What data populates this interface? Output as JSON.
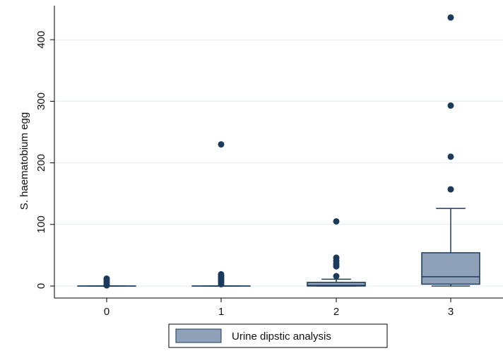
{
  "chart_data": {
    "type": "box",
    "ylabel": "S. haematobium egg",
    "xlabel": "",
    "categories": [
      "0",
      "1",
      "2",
      "3"
    ],
    "yticks": [
      0,
      100,
      200,
      300,
      400
    ],
    "ylim": [
      -20,
      452
    ],
    "grid": true,
    "legend_position": "bottom",
    "series": [
      {
        "name": "Urine dipstic analysis",
        "boxes": [
          {
            "category": "0",
            "q1": 0,
            "median": 0,
            "q3": 0,
            "whisker_low": 0,
            "whisker_high": 0,
            "outliers": [
              12,
              9,
              6,
              3,
              1
            ]
          },
          {
            "category": "1",
            "q1": 0,
            "median": 0,
            "q3": 0,
            "whisker_low": 0,
            "whisker_high": 0,
            "outliers": [
              230,
              19,
              16,
              14,
              12,
              9,
              6,
              3
            ]
          },
          {
            "category": "2",
            "q1": 0,
            "median": 1,
            "q3": 6,
            "whisker_low": 0,
            "whisker_high": 11,
            "outliers": [
              105,
              46,
              41,
              36,
              32,
              16
            ]
          },
          {
            "category": "3",
            "q1": 3,
            "median": 15,
            "q3": 54,
            "whisker_low": 0,
            "whisker_high": 126,
            "outliers": [
              436,
              293,
              210,
              157
            ]
          }
        ]
      }
    ],
    "colors": {
      "box_fill": "#8ea1b9",
      "line": "#1b3a5c",
      "marker": "#1b3a5c",
      "grid": "#e4ebf0",
      "axis": "#000000"
    }
  }
}
